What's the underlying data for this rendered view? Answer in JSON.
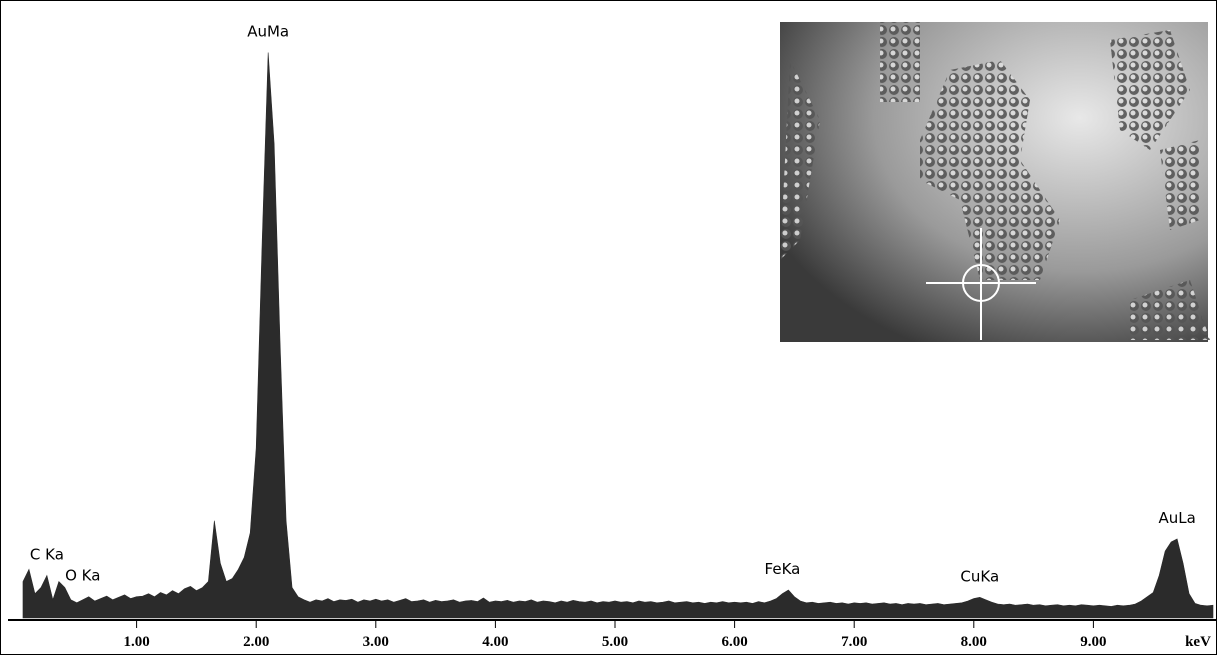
{
  "chart_data": {
    "type": "area",
    "x": [
      0.05,
      0.1,
      0.15,
      0.2,
      0.25,
      0.3,
      0.35,
      0.4,
      0.45,
      0.5,
      0.55,
      0.6,
      0.65,
      0.7,
      0.75,
      0.8,
      0.85,
      0.9,
      0.95,
      1.0,
      1.05,
      1.1,
      1.15,
      1.2,
      1.25,
      1.3,
      1.35,
      1.4,
      1.45,
      1.5,
      1.55,
      1.6,
      1.65,
      1.7,
      1.75,
      1.8,
      1.85,
      1.9,
      1.95,
      2.0,
      2.05,
      2.1,
      2.15,
      2.2,
      2.25,
      2.3,
      2.35,
      2.4,
      2.45,
      2.5,
      2.55,
      2.6,
      2.65,
      2.7,
      2.75,
      2.8,
      2.85,
      2.9,
      2.95,
      3.0,
      3.05,
      3.1,
      3.15,
      3.2,
      3.25,
      3.3,
      3.35,
      3.4,
      3.45,
      3.5,
      3.55,
      3.6,
      3.65,
      3.7,
      3.75,
      3.8,
      3.85,
      3.9,
      3.95,
      4.0,
      4.05,
      4.1,
      4.15,
      4.2,
      4.25,
      4.3,
      4.35,
      4.4,
      4.45,
      4.5,
      4.55,
      4.6,
      4.65,
      4.7,
      4.75,
      4.8,
      4.85,
      4.9,
      4.95,
      5.0,
      5.05,
      5.1,
      5.15,
      5.2,
      5.25,
      5.3,
      5.35,
      5.4,
      5.45,
      5.5,
      5.55,
      5.6,
      5.65,
      5.7,
      5.75,
      5.8,
      5.85,
      5.9,
      5.95,
      6.0,
      6.05,
      6.1,
      6.15,
      6.2,
      6.25,
      6.3,
      6.35,
      6.4,
      6.45,
      6.5,
      6.55,
      6.6,
      6.65,
      6.7,
      6.75,
      6.8,
      6.85,
      6.9,
      6.95,
      7.0,
      7.05,
      7.1,
      7.15,
      7.2,
      7.25,
      7.3,
      7.35,
      7.4,
      7.45,
      7.5,
      7.55,
      7.6,
      7.65,
      7.7,
      7.75,
      7.8,
      7.85,
      7.9,
      7.95,
      8.0,
      8.05,
      8.1,
      8.15,
      8.2,
      8.25,
      8.3,
      8.35,
      8.4,
      8.45,
      8.5,
      8.55,
      8.6,
      8.65,
      8.7,
      8.75,
      8.8,
      8.85,
      8.9,
      8.95,
      9.0,
      9.05,
      9.1,
      9.15,
      9.2,
      9.25,
      9.3,
      9.35,
      9.4,
      9.45,
      9.5,
      9.55,
      9.6,
      9.65,
      9.7,
      9.75,
      9.8,
      9.85,
      9.9,
      9.95,
      10.0
    ],
    "values": [
      6,
      8,
      4,
      5,
      7,
      3,
      6,
      5,
      3,
      2.5,
      3,
      3.5,
      2.8,
      3.2,
      3.6,
      3,
      3.4,
      3.8,
      3.2,
      3.5,
      3.6,
      4,
      3.5,
      4.2,
      3.8,
      4.5,
      4,
      4.8,
      5.2,
      4.5,
      5,
      6,
      16,
      9,
      6,
      6.5,
      8,
      10,
      14,
      28,
      62,
      93,
      78,
      45,
      16,
      5,
      3.5,
      3,
      2.6,
      3,
      2.8,
      3.2,
      2.7,
      3,
      2.9,
      3.1,
      2.6,
      3,
      2.8,
      3.1,
      2.8,
      3,
      2.6,
      2.9,
      3.2,
      2.7,
      2.8,
      3,
      2.6,
      2.9,
      2.7,
      2.8,
      3,
      2.6,
      2.8,
      2.9,
      2.7,
      3.3,
      2.6,
      2.8,
      2.7,
      2.9,
      2.6,
      2.8,
      2.7,
      3,
      2.6,
      2.8,
      2.7,
      2.5,
      2.8,
      2.6,
      2.9,
      2.7,
      2.6,
      2.8,
      2.5,
      2.7,
      2.6,
      2.8,
      2.6,
      2.7,
      2.5,
      2.8,
      2.6,
      2.7,
      2.5,
      2.6,
      2.8,
      2.5,
      2.6,
      2.7,
      2.5,
      2.6,
      2.4,
      2.6,
      2.5,
      2.7,
      2.5,
      2.6,
      2.5,
      2.6,
      2.4,
      2.7,
      2.5,
      2.8,
      3.2,
      4,
      4.6,
      3.5,
      2.8,
      2.5,
      2.6,
      2.4,
      2.5,
      2.6,
      2.4,
      2.5,
      2.3,
      2.5,
      2.4,
      2.5,
      2.3,
      2.4,
      2.5,
      2.3,
      2.4,
      2.2,
      2.4,
      2.3,
      2.4,
      2.2,
      2.3,
      2.4,
      2.2,
      2.3,
      2.4,
      2.5,
      2.8,
      3.2,
      3.4,
      3,
      2.6,
      2.3,
      2.2,
      2.3,
      2.1,
      2.2,
      2.3,
      2.1,
      2.2,
      2,
      2.1,
      2.2,
      2,
      2.1,
      2,
      2.2,
      2.1,
      2,
      2.1,
      2,
      1.9,
      2.1,
      2,
      2.1,
      2.3,
      2.8,
      3.5,
      4.2,
      7,
      11,
      12.5,
      13,
      9,
      4,
      2.4,
      2.1,
      2,
      2.1
    ],
    "color": "#2b2b2b",
    "xlim": [
      0,
      10
    ],
    "ylim": [
      0,
      100
    ],
    "xticks": [
      {
        "value": 1,
        "label": "1.00"
      },
      {
        "value": 2,
        "label": "2.00"
      },
      {
        "value": 3,
        "label": "3.00"
      },
      {
        "value": 4,
        "label": "4.00"
      },
      {
        "value": 5,
        "label": "5.00"
      },
      {
        "value": 6,
        "label": "6.00"
      },
      {
        "value": 7,
        "label": "7.00"
      },
      {
        "value": 8,
        "label": "8.00"
      },
      {
        "value": 9,
        "label": "9.00"
      }
    ],
    "x_label": "keV",
    "annotations": [
      {
        "text": "C Ka",
        "x": 0.25
      },
      {
        "text": "O Ka",
        "x": 0.55
      },
      {
        "text": "AuMa",
        "x": 2.1
      },
      {
        "text": "FeKa",
        "x": 6.4
      },
      {
        "text": "CuKa",
        "x": 8.05
      },
      {
        "text": "AuLa",
        "x": 9.7
      }
    ]
  }
}
